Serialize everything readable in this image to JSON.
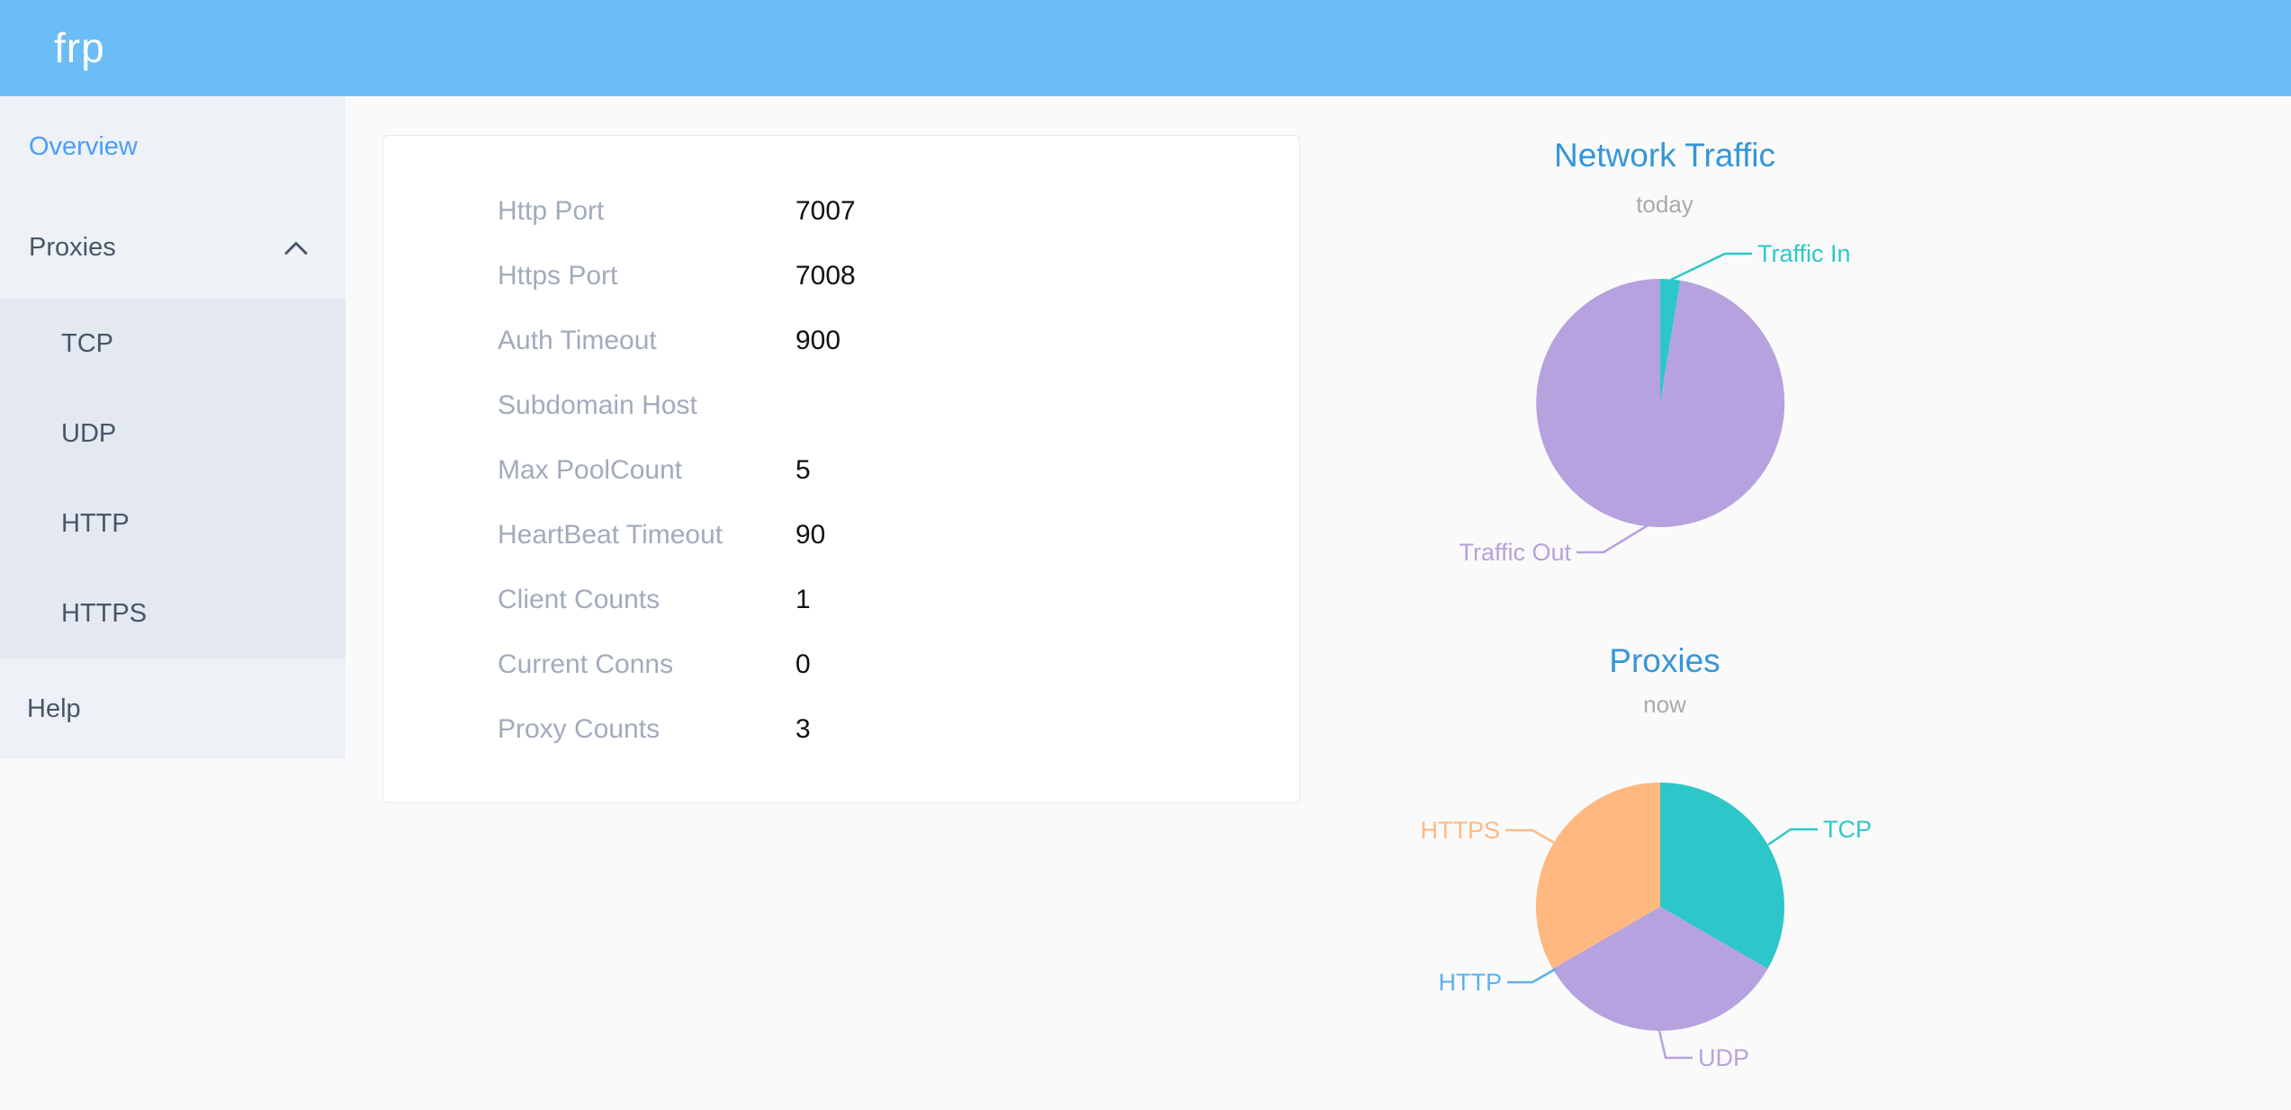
{
  "header": {
    "logo": "frp"
  },
  "sidebar": {
    "items": [
      {
        "label": "Overview",
        "active": true
      },
      {
        "label": "Proxies",
        "expanded": true,
        "children": [
          "TCP",
          "UDP",
          "HTTP",
          "HTTPS"
        ]
      },
      {
        "label": "Help"
      }
    ]
  },
  "overview_card": {
    "rows": [
      {
        "label": "Http Port",
        "value": "7007"
      },
      {
        "label": "Https Port",
        "value": "7008"
      },
      {
        "label": "Auth Timeout",
        "value": "900"
      },
      {
        "label": "Subdomain Host",
        "value": ""
      },
      {
        "label": "Max PoolCount",
        "value": "5"
      },
      {
        "label": "HeartBeat Timeout",
        "value": "90"
      },
      {
        "label": "Client Counts",
        "value": "1"
      },
      {
        "label": "Current Conns",
        "value": "0"
      },
      {
        "label": "Proxy Counts",
        "value": "3"
      }
    ]
  },
  "chart_data": [
    {
      "type": "pie",
      "title": "Network Traffic",
      "subtitle": "today",
      "legend_position": "none",
      "label_style": "outside-with-leader-lines",
      "unit": "percent (estimated from slice angles)",
      "series": [
        {
          "name": "Traffic In",
          "value": 2.6,
          "color": "#2ec7c9"
        },
        {
          "name": "Traffic Out",
          "value": 97.4,
          "color": "#b6a2de"
        }
      ]
    },
    {
      "type": "pie",
      "title": "Proxies",
      "subtitle": "now",
      "legend_position": "none",
      "label_style": "outside-with-leader-lines",
      "unit": "proxy count",
      "series": [
        {
          "name": "TCP",
          "value": 1,
          "color": "#2ec7c9"
        },
        {
          "name": "UDP",
          "value": 1,
          "color": "#b6a2de"
        },
        {
          "name": "HTTP",
          "value": 0,
          "color": "#5ab1ef"
        },
        {
          "name": "HTTPS",
          "value": 1,
          "color": "#ffb980"
        }
      ]
    }
  ],
  "colors": {
    "header_bg": "#6cbdf7",
    "sidebar_bg": "#eef1f6",
    "submenu_bg": "#e4e8f0",
    "active_menu": "#4a9ef9",
    "menu_text": "#475669",
    "card_label": "#a2abbd",
    "chart_title": "#3496d8",
    "teal": "#2ec7c9",
    "purple": "#b6a2de",
    "blue": "#5ab1ef",
    "orange": "#ffb980"
  }
}
